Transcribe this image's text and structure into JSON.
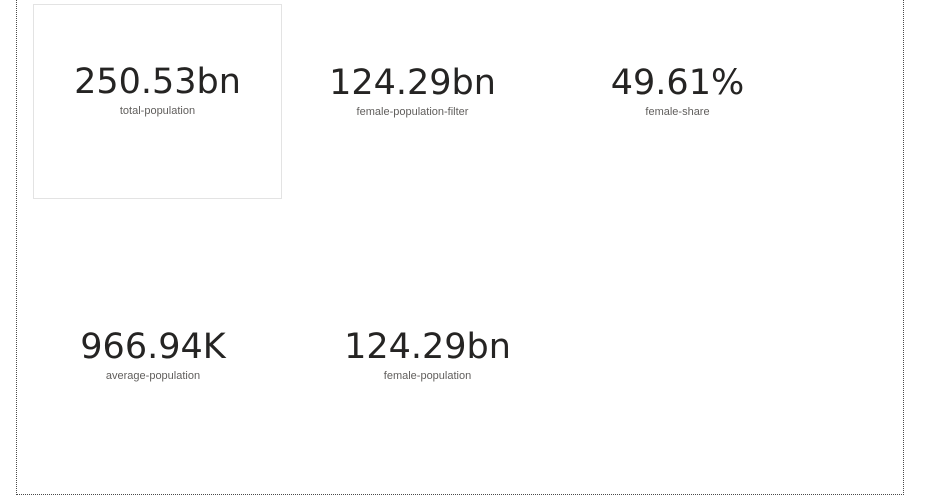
{
  "cards": [
    {
      "value": "250.53bn",
      "label": "total-population"
    },
    {
      "value": "124.29bn",
      "label": "female-population-filter"
    },
    {
      "value": "49.61%",
      "label": "female-share"
    },
    {
      "value": "966.94K",
      "label": "average-population"
    },
    {
      "value": "124.29bn",
      "label": "female-population"
    }
  ],
  "colors": {
    "value_text": "#252423",
    "label_text": "#605e5c",
    "selected_card_border": "#e3e3e3",
    "canvas_border": "#4a4a4a"
  }
}
